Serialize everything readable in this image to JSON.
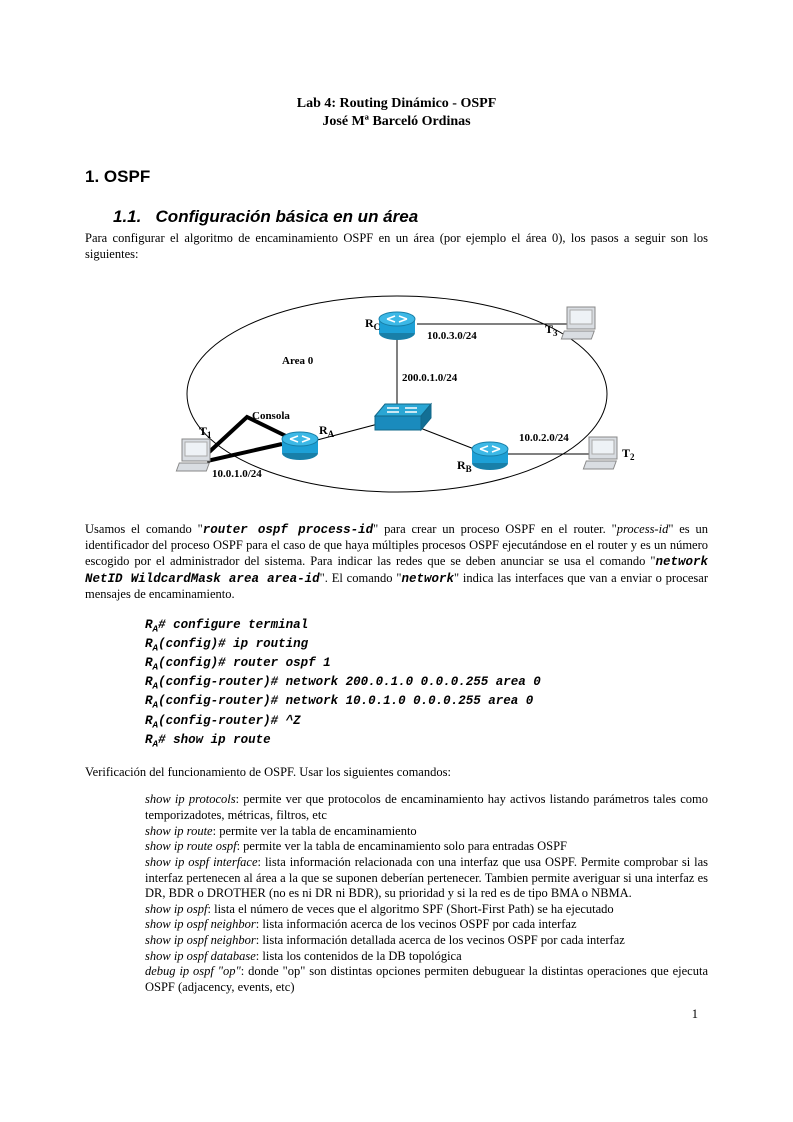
{
  "header": {
    "title": "Lab 4: Routing Dinámico - OSPF",
    "author": "José Mª Barceló Ordinas"
  },
  "sections": {
    "h1_num": "1.",
    "h1_text": "OSPF",
    "h2_num": "1.1.",
    "h2_text": "Configuración básica en un área"
  },
  "para1": "Para configurar el algoritmo de encaminamiento OSPF en un área (por ejemplo el área 0), los pasos a seguir son los siguientes:",
  "diagram": {
    "area_label": "Area 0",
    "consola": "Consola",
    "RA": "R",
    "RA_sub": "A",
    "RB": "R",
    "RB_sub": "B",
    "RC": "R",
    "RC_sub": "C",
    "T1": "T",
    "T1_sub": "1",
    "T2": "T",
    "T2_sub": "2",
    "T3": "T",
    "T3_sub": "3",
    "net1": "10.0.1.0/24",
    "net2": "10.0.2.0/24",
    "net3": "10.0.3.0/24",
    "net4": "200.0.1.0/24",
    "colors": {
      "router_body": "#1da0d6",
      "router_dark": "#187fa8",
      "switch_body": "#2aa6d4",
      "pc_body": "#d9dde2",
      "pc_screen": "#e9edf2"
    }
  },
  "para2_parts": {
    "a": "Usamos el comando \"",
    "cmd1": "router ospf process-id",
    "b": "\" para crear un proceso OSPF en el router. \"",
    "i1": "process-id",
    "c": "\" es un identificador del proceso OSPF para el caso de que haya múltiples procesos OSPF ejecutándose en el router y es un número escogido por el administrador del sistema. Para indicar las redes que se deben anunciar se usa el comando \"",
    "cmd2": "network NetID WildcardMask area area-id",
    "d": "\". El comando \"",
    "cmd3": "network",
    "e": "\" indica las interfaces que van a enviar o procesar mensajes de encaminamiento."
  },
  "code": [
    {
      "p": "R",
      "s": "A",
      "rest": "# configure terminal"
    },
    {
      "p": "R",
      "s": "A",
      "rest": "(config)# ip routing"
    },
    {
      "p": "R",
      "s": "A",
      "rest": "(config)# router ospf 1"
    },
    {
      "p": "R",
      "s": "A",
      "rest": "(config-router)# network 200.0.1.0 0.0.0.255 area 0"
    },
    {
      "p": "R",
      "s": "A",
      "rest": "(config-router)# network 10.0.1.0 0.0.0.255 area 0"
    },
    {
      "p": "R",
      "s": "A",
      "rest": "(config-router)# ^Z"
    },
    {
      "p": "R",
      "s": "A",
      "rest": "# show ip route"
    }
  ],
  "para3": "Verificación del funcionamiento de OSPF. Usar los siguientes comandos:",
  "commands": [
    {
      "name": "show ip protocols",
      "desc": ": permite ver que protocolos de encaminamiento hay activos listando parámetros tales como temporizadotes, métricas, filtros, etc"
    },
    {
      "name": "show ip route",
      "desc": ": permite ver la tabla de encaminamiento"
    },
    {
      "name": "show ip route ospf",
      "desc": ": permite ver la tabla de encaminamiento solo para entradas OSPF"
    },
    {
      "name": "show ip ospf interface",
      "desc": ": lista información relacionada con una interfaz que usa OSPF. Permite comprobar si las interfaz pertenecen al área a la que se suponen deberían pertenecer. Tambien permite averiguar si una interfaz es DR, BDR o DROTHER (no es ni DR ni BDR), su prioridad y si la red es de tipo BMA o NBMA."
    },
    {
      "name": "show ip ospf",
      "desc": ": lista el número de veces que el algoritmo SPF (Short-First Path) se ha ejecutado"
    },
    {
      "name": "show ip ospf neighbor",
      "desc": ": lista información acerca de los vecinos OSPF por cada interfaz"
    },
    {
      "name": "show ip ospf neighbor",
      "desc": ": lista información detallada acerca de los vecinos OSPF por cada interfaz"
    },
    {
      "name": "show ip ospf database",
      "desc": ": lista los contenidos de la DB topológica"
    },
    {
      "name": "debug ip ospf \"op\"",
      "desc": ": donde \"op\" son distintas opciones permiten debuguear la distintas operaciones que ejecuta OSPF (adjacency, events, etc)"
    }
  ],
  "page_number": "1"
}
